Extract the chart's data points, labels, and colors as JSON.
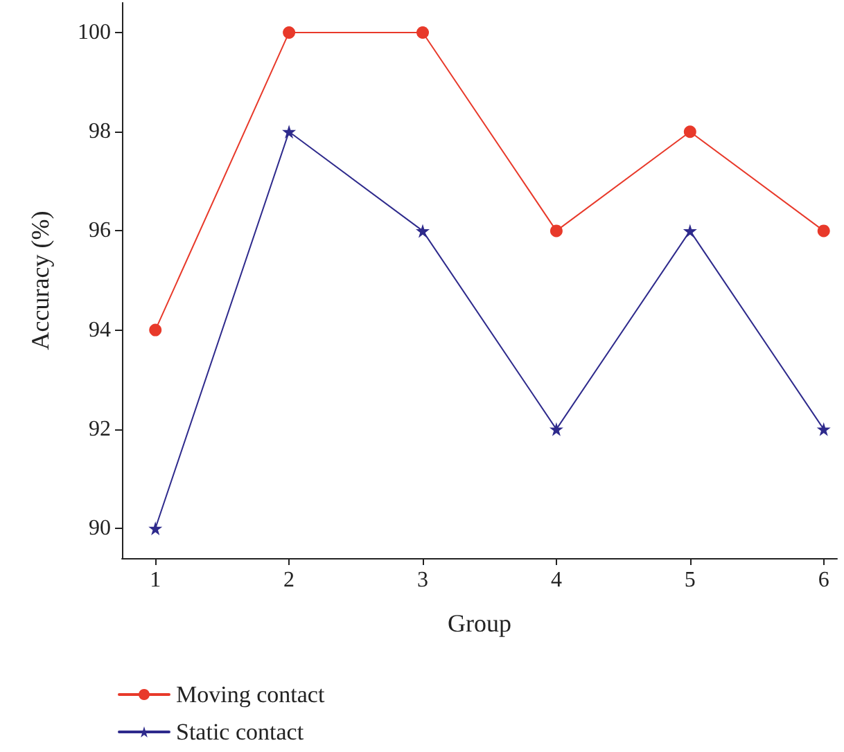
{
  "chart_data": {
    "type": "line",
    "xlabel": "Group",
    "ylabel": "Accuracy (%)",
    "x": [
      1,
      2,
      3,
      4,
      5,
      6
    ],
    "series": [
      {
        "name": "Moving contact",
        "color": "#e8392a",
        "marker": "circle",
        "values": [
          94,
          100,
          100,
          96,
          98,
          96
        ]
      },
      {
        "name": "Static contact",
        "color": "#2e2a8c",
        "marker": "star",
        "values": [
          90,
          98,
          96,
          92,
          96,
          92
        ]
      }
    ],
    "xlim": [
      0.75,
      6.1
    ],
    "xticks": [
      1,
      2,
      3,
      4,
      5,
      6
    ],
    "ylim": [
      89.4,
      100.6
    ],
    "yticks": [
      90,
      92,
      94,
      96,
      98,
      100
    ],
    "grid": false,
    "legend": "bottom left",
    "line_style": "solid"
  }
}
